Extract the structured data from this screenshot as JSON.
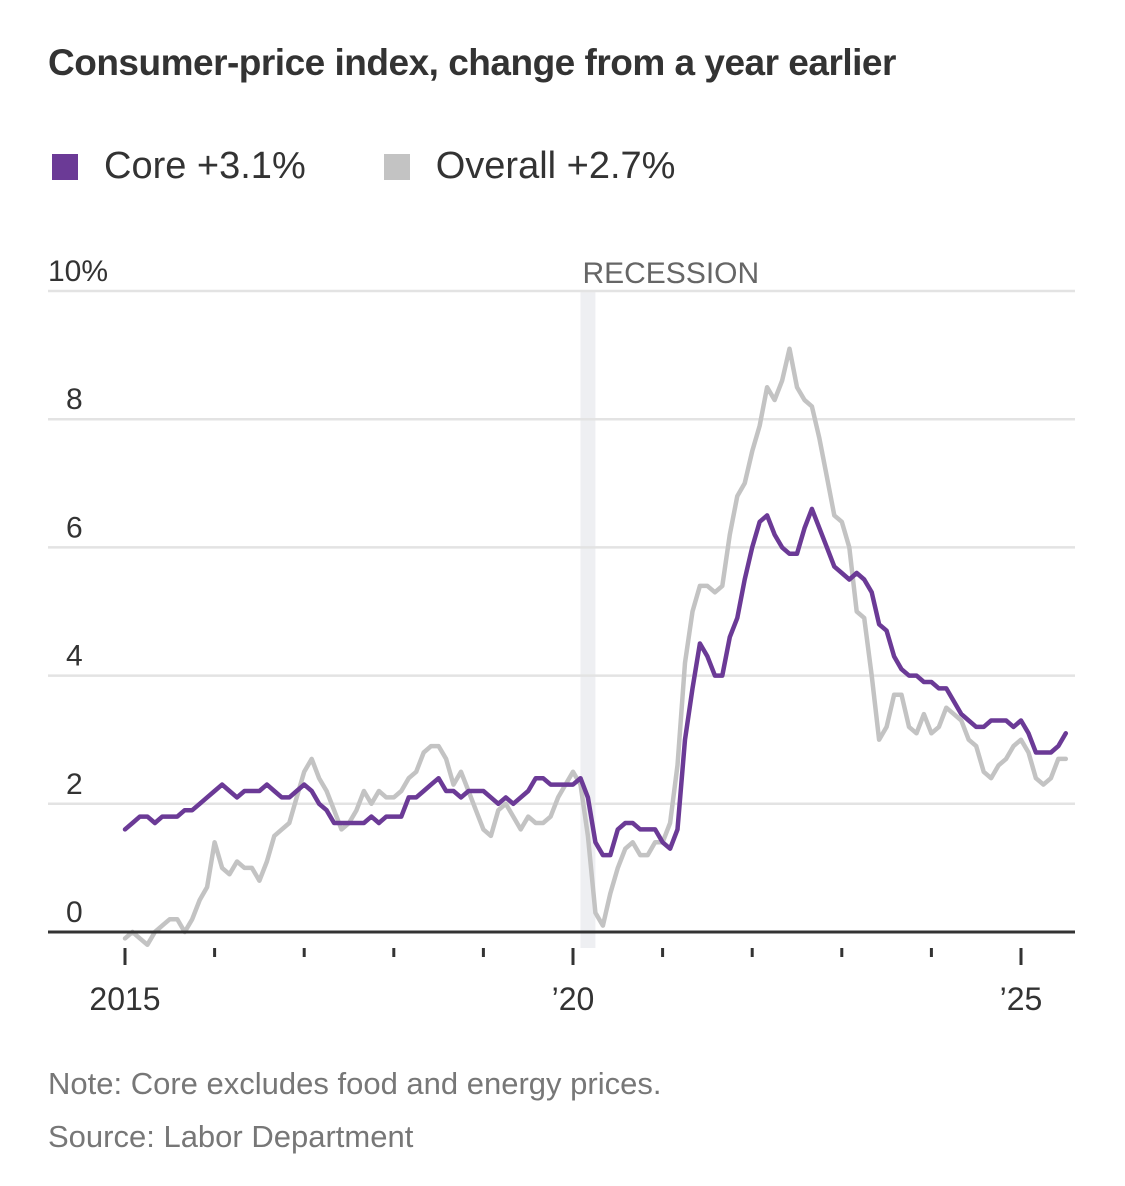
{
  "title": "Consumer-price index, change from a year earlier",
  "legend": [
    {
      "label": "Core +3.1%",
      "color": "#6b3a96"
    },
    {
      "label": "Overall +2.7%",
      "color": "#c3c3c3"
    }
  ],
  "notes": {
    "note": "Note: Core excludes food and energy prices.",
    "source": "Source: Labor Department"
  },
  "chart_data": {
    "type": "line",
    "title": "Consumer-price index, change from a year earlier",
    "x_start": "2015-01",
    "x_frequency": "monthly",
    "xlim": [
      "2015-01",
      "2025-07"
    ],
    "ylim": [
      0,
      10
    ],
    "y_ticks": [
      0,
      2,
      4,
      6,
      8,
      10
    ],
    "y_tick_labels": [
      "0",
      "2",
      "4",
      "6",
      "8",
      "10%"
    ],
    "x_ticks": [
      2015,
      2016,
      2017,
      2018,
      2019,
      2020,
      2021,
      2022,
      2023,
      2024,
      2025
    ],
    "x_tick_labels": [
      {
        "year": 2015,
        "label": "2015"
      },
      {
        "year": 2020,
        "label": "’20"
      },
      {
        "year": 2025,
        "label": "’25"
      }
    ],
    "grid": true,
    "legend_placement": "top-left",
    "annotations": [
      {
        "label": "RECESSION",
        "from": "2020-02",
        "to": "2020-04",
        "color": "#eeeff2"
      }
    ],
    "series": [
      {
        "name": "Core",
        "color": "#6b3a96",
        "values": [
          1.6,
          1.7,
          1.8,
          1.8,
          1.7,
          1.8,
          1.8,
          1.8,
          1.9,
          1.9,
          2.0,
          2.1,
          2.2,
          2.3,
          2.2,
          2.1,
          2.2,
          2.2,
          2.2,
          2.3,
          2.2,
          2.1,
          2.1,
          2.2,
          2.3,
          2.2,
          2.0,
          1.9,
          1.7,
          1.7,
          1.7,
          1.7,
          1.7,
          1.8,
          1.7,
          1.8,
          1.8,
          1.8,
          2.1,
          2.1,
          2.2,
          2.3,
          2.4,
          2.2,
          2.2,
          2.1,
          2.2,
          2.2,
          2.2,
          2.1,
          2.0,
          2.1,
          2.0,
          2.1,
          2.2,
          2.4,
          2.4,
          2.3,
          2.3,
          2.3,
          2.3,
          2.4,
          2.1,
          1.4,
          1.2,
          1.2,
          1.6,
          1.7,
          1.7,
          1.6,
          1.6,
          1.6,
          1.4,
          1.3,
          1.6,
          3.0,
          3.8,
          4.5,
          4.3,
          4.0,
          4.0,
          4.6,
          4.9,
          5.5,
          6.0,
          6.4,
          6.5,
          6.2,
          6.0,
          5.9,
          5.9,
          6.3,
          6.6,
          6.3,
          6.0,
          5.7,
          5.6,
          5.5,
          5.6,
          5.5,
          5.3,
          4.8,
          4.7,
          4.3,
          4.1,
          4.0,
          4.0,
          3.9,
          3.9,
          3.8,
          3.8,
          3.6,
          3.4,
          3.3,
          3.2,
          3.2,
          3.3,
          3.3,
          3.3,
          3.2,
          3.3,
          3.1,
          2.8,
          2.8,
          2.8,
          2.9,
          3.1
        ]
      },
      {
        "name": "Overall",
        "color": "#c3c3c3",
        "values": [
          -0.1,
          0.0,
          -0.1,
          -0.2,
          0.0,
          0.1,
          0.2,
          0.2,
          0.0,
          0.2,
          0.5,
          0.7,
          1.4,
          1.0,
          0.9,
          1.1,
          1.0,
          1.0,
          0.8,
          1.1,
          1.5,
          1.6,
          1.7,
          2.1,
          2.5,
          2.7,
          2.4,
          2.2,
          1.9,
          1.6,
          1.7,
          1.9,
          2.2,
          2.0,
          2.2,
          2.1,
          2.1,
          2.2,
          2.4,
          2.5,
          2.8,
          2.9,
          2.9,
          2.7,
          2.3,
          2.5,
          2.2,
          1.9,
          1.6,
          1.5,
          1.9,
          2.0,
          1.8,
          1.6,
          1.8,
          1.7,
          1.7,
          1.8,
          2.1,
          2.3,
          2.5,
          2.3,
          1.5,
          0.3,
          0.1,
          0.6,
          1.0,
          1.3,
          1.4,
          1.2,
          1.2,
          1.4,
          1.4,
          1.7,
          2.6,
          4.2,
          5.0,
          5.4,
          5.4,
          5.3,
          5.4,
          6.2,
          6.8,
          7.0,
          7.5,
          7.9,
          8.5,
          8.3,
          8.6,
          9.1,
          8.5,
          8.3,
          8.2,
          7.7,
          7.1,
          6.5,
          6.4,
          6.0,
          5.0,
          4.9,
          4.0,
          3.0,
          3.2,
          3.7,
          3.7,
          3.2,
          3.1,
          3.4,
          3.1,
          3.2,
          3.5,
          3.4,
          3.3,
          3.0,
          2.9,
          2.5,
          2.4,
          2.6,
          2.7,
          2.9,
          3.0,
          2.8,
          2.4,
          2.3,
          2.4,
          2.7,
          2.7
        ]
      }
    ]
  }
}
